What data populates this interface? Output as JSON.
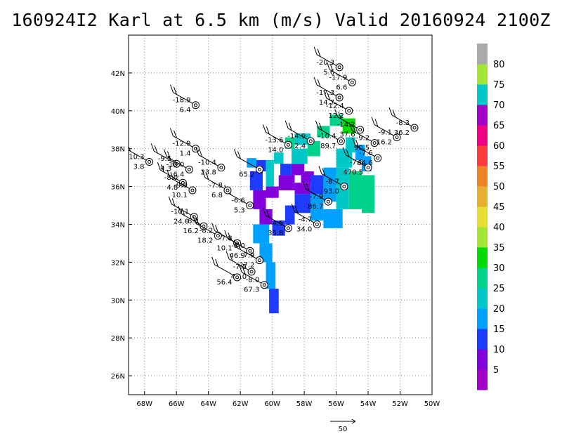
{
  "title": "160924I2 Karl at 6.5 km (m/s) Valid 20160924 2100Z",
  "chart_data": {
    "type": "heatmap",
    "title": "160924I2 Karl at 6.5 km (m/s) Valid 20160924 2100Z",
    "xlim": [
      -69,
      -50
    ],
    "ylim": [
      25,
      44
    ],
    "x_ticks": [
      {
        "value": -68,
        "label": "68W"
      },
      {
        "value": -66,
        "label": "66W"
      },
      {
        "value": -64,
        "label": "64W"
      },
      {
        "value": -62,
        "label": "62W"
      },
      {
        "value": -60,
        "label": "60W"
      },
      {
        "value": -58,
        "label": "58W"
      },
      {
        "value": -56,
        "label": "56W"
      },
      {
        "value": -54,
        "label": "54W"
      },
      {
        "value": -52,
        "label": "52W"
      },
      {
        "value": -50,
        "label": "50W"
      }
    ],
    "y_ticks": [
      {
        "value": 26,
        "label": "26N"
      },
      {
        "value": 28,
        "label": "28N"
      },
      {
        "value": 30,
        "label": "30N"
      },
      {
        "value": 32,
        "label": "32N"
      },
      {
        "value": 34,
        "label": "34N"
      },
      {
        "value": 36,
        "label": "36N"
      },
      {
        "value": 38,
        "label": "38N"
      },
      {
        "value": 40,
        "label": "40N"
      },
      {
        "value": 42,
        "label": "42N"
      }
    ],
    "grid": true,
    "colorbar": {
      "labels": [
        "5",
        "10",
        "15",
        "20",
        "25",
        "30",
        "35",
        "40",
        "45",
        "50",
        "55",
        "60",
        "65",
        "70",
        "75",
        "80"
      ],
      "colors": [
        "#a000c8",
        "#8200dc",
        "#1e3cff",
        "#00a0ff",
        "#00c8c8",
        "#00d28c",
        "#00dc00",
        "#a0e632",
        "#e6dc32",
        "#e6af2d",
        "#f08228",
        "#fa3c3c",
        "#f00082",
        "#a000c8",
        "#00c8c8",
        "#a0e632",
        "#aaaaaa"
      ]
    },
    "wind_field": [
      {
        "x0": -61.6,
        "x1": -61.0,
        "y0": 37.0,
        "y1": 37.5,
        "speed": 17
      },
      {
        "x0": -61.0,
        "x1": -60.4,
        "y0": 36.8,
        "y1": 37.4,
        "speed": 12
      },
      {
        "x0": -60.4,
        "x1": -59.9,
        "y0": 36.0,
        "y1": 37.4,
        "speed": 22
      },
      {
        "x0": -59.9,
        "x1": -59.3,
        "y0": 37.2,
        "y1": 37.8,
        "speed": 24
      },
      {
        "x0": -59.5,
        "x1": -58.8,
        "y0": 36.6,
        "y1": 37.2,
        "speed": 10
      },
      {
        "x0": -58.8,
        "x1": -58.0,
        "y0": 36.6,
        "y1": 37.2,
        "speed": 6
      },
      {
        "x0": -58.2,
        "x1": -57.4,
        "y0": 36.2,
        "y1": 36.8,
        "speed": 8
      },
      {
        "x0": -58.8,
        "x1": -57.8,
        "y0": 37.2,
        "y1": 38.0,
        "speed": 22
      },
      {
        "x0": -57.8,
        "x1": -57.0,
        "y0": 37.6,
        "y1": 38.4,
        "speed": 25
      },
      {
        "x0": -56.0,
        "x1": -55.0,
        "y0": 37.0,
        "y1": 38.0,
        "speed": 20
      },
      {
        "x0": -55.6,
        "x1": -54.8,
        "y0": 38.8,
        "y1": 39.6,
        "speed": 31
      },
      {
        "x0": -56.4,
        "x1": -55.6,
        "y0": 39.2,
        "y1": 39.8,
        "speed": 28
      },
      {
        "x0": -57.2,
        "x1": -56.4,
        "y0": 38.6,
        "y1": 39.2,
        "speed": 25
      },
      {
        "x0": -58.6,
        "x1": -57.6,
        "y0": 38.2,
        "y1": 38.8,
        "speed": 24
      },
      {
        "x0": -59.2,
        "x1": -58.6,
        "y0": 38.0,
        "y1": 38.6,
        "speed": 27
      },
      {
        "x0": -55.4,
        "x1": -54.8,
        "y0": 37.8,
        "y1": 38.6,
        "speed": 21
      },
      {
        "x0": -54.8,
        "x1": -54.2,
        "y0": 37.4,
        "y1": 38.2,
        "speed": 19
      },
      {
        "x0": -54.4,
        "x1": -53.8,
        "y0": 36.8,
        "y1": 37.6,
        "speed": 17
      },
      {
        "x0": -61.4,
        "x1": -60.6,
        "y0": 35.8,
        "y1": 36.8,
        "speed": 10
      },
      {
        "x0": -61.2,
        "x1": -60.4,
        "y0": 34.8,
        "y1": 35.8,
        "speed": 8
      },
      {
        "x0": -60.4,
        "x1": -59.6,
        "y0": 35.4,
        "y1": 36.0,
        "speed": 6
      },
      {
        "x0": -59.6,
        "x1": -58.6,
        "y0": 35.8,
        "y1": 36.6,
        "speed": 7
      },
      {
        "x0": -58.6,
        "x1": -57.6,
        "y0": 35.6,
        "y1": 36.2,
        "speed": 9
      },
      {
        "x0": -57.6,
        "x1": -56.8,
        "y0": 35.6,
        "y1": 36.6,
        "speed": 14
      },
      {
        "x0": -56.8,
        "x1": -56.0,
        "y0": 35.2,
        "y1": 36.2,
        "speed": 18
      },
      {
        "x0": -56.0,
        "x1": -55.2,
        "y0": 34.8,
        "y1": 35.8,
        "speed": 21
      },
      {
        "x0": -55.2,
        "x1": -54.4,
        "y0": 34.8,
        "y1": 36.8,
        "speed": 27
      },
      {
        "x0": -54.4,
        "x1": -53.6,
        "y0": 34.6,
        "y1": 36.6,
        "speed": 29
      },
      {
        "x0": -56.8,
        "x1": -56.0,
        "y0": 36.2,
        "y1": 37.0,
        "speed": 19
      },
      {
        "x0": -56.0,
        "x1": -55.2,
        "y0": 35.8,
        "y1": 37.0,
        "speed": 22
      },
      {
        "x0": -58.6,
        "x1": -57.6,
        "y0": 34.6,
        "y1": 35.6,
        "speed": 12
      },
      {
        "x0": -57.6,
        "x1": -56.8,
        "y0": 34.2,
        "y1": 35.6,
        "speed": 16
      },
      {
        "x0": -56.8,
        "x1": -55.6,
        "y0": 33.8,
        "y1": 34.8,
        "speed": 19
      },
      {
        "x0": -59.2,
        "x1": -58.6,
        "y0": 34.0,
        "y1": 35.0,
        "speed": 14
      },
      {
        "x0": -60.8,
        "x1": -60.0,
        "y0": 34.0,
        "y1": 34.8,
        "speed": 9
      },
      {
        "x0": -60.0,
        "x1": -59.2,
        "y0": 33.4,
        "y1": 34.2,
        "speed": 11
      },
      {
        "x0": -61.2,
        "x1": -60.2,
        "y0": 33.0,
        "y1": 34.0,
        "speed": 15
      },
      {
        "x0": -60.8,
        "x1": -60.0,
        "y0": 32.0,
        "y1": 33.0,
        "speed": 18
      },
      {
        "x0": -60.4,
        "x1": -59.8,
        "y0": 30.6,
        "y1": 32.0,
        "speed": 17
      },
      {
        "x0": -60.2,
        "x1": -59.6,
        "y0": 29.3,
        "y1": 30.6,
        "speed": 11
      }
    ],
    "observations": [
      {
        "x": -55.8,
        "y": 42.3,
        "u": "-20.3",
        "v": "5.6"
      },
      {
        "x": -55.0,
        "y": 41.5,
        "u": "-17.9",
        "v": "6.6"
      },
      {
        "x": -55.8,
        "y": 40.7,
        "u": "-17.3",
        "v": "14.7"
      },
      {
        "x": -55.2,
        "y": 40.0,
        "u": "-12.4",
        "v": "12.2"
      },
      {
        "x": -54.5,
        "y": 39.0,
        "u": "-14.2",
        "v": "37.6"
      },
      {
        "x": -53.6,
        "y": 38.3,
        "u": "-9.2",
        "v": "90.5"
      },
      {
        "x": -52.2,
        "y": 38.6,
        "u": "-9.1",
        "v": "16.2"
      },
      {
        "x": -51.1,
        "y": 39.1,
        "u": "-8.3",
        "v": "36.2"
      },
      {
        "x": -53.4,
        "y": 37.5,
        "u": "-7.6",
        "v": "64.6"
      },
      {
        "x": -54.0,
        "y": 37.0,
        "u": "-7.5",
        "v": "470.5"
      },
      {
        "x": -55.7,
        "y": 38.4,
        "u": "-10.4",
        "v": "89.7"
      },
      {
        "x": -57.6,
        "y": 38.4,
        "u": "-14.9",
        "v": "2.4"
      },
      {
        "x": -59.0,
        "y": 38.2,
        "u": "-13.6",
        "v": "14.0"
      },
      {
        "x": -55.5,
        "y": 36.0,
        "u": "-8.7",
        "v": "93.0"
      },
      {
        "x": -56.5,
        "y": 35.2,
        "u": "-7.9",
        "v": "86.7"
      },
      {
        "x": -57.2,
        "y": 34.0,
        "u": "-4.7",
        "v": "34.0"
      },
      {
        "x": -59.0,
        "y": 33.8,
        "u": "-4.5",
        "v": "35.8"
      },
      {
        "x": -60.8,
        "y": 36.9,
        "u": "",
        "v": "65.2"
      },
      {
        "x": -61.4,
        "y": 35.0,
        "u": "-6.6",
        "v": "5.3"
      },
      {
        "x": -62.8,
        "y": 35.8,
        "u": "-7.8",
        "v": "6.8"
      },
      {
        "x": -64.8,
        "y": 38.0,
        "u": "-12.9",
        "v": "1.4"
      },
      {
        "x": -63.2,
        "y": 37.0,
        "u": "-10.4",
        "v": "23.8"
      },
      {
        "x": -65.6,
        "y": 36.2,
        "u": "-8.0",
        "v": "4.8"
      },
      {
        "x": -65.0,
        "y": 35.8,
        "u": "-9.9",
        "v": "10.1"
      },
      {
        "x": -67.7,
        "y": 37.3,
        "u": "10.3",
        "v": "3.8"
      },
      {
        "x": -66.0,
        "y": 37.2,
        "u": "-9.5",
        "v": "4.3"
      },
      {
        "x": -65.2,
        "y": 36.9,
        "u": "-10.0",
        "v": "6.4"
      },
      {
        "x": -64.8,
        "y": 40.3,
        "u": "-18.9",
        "v": "6.4"
      },
      {
        "x": -64.9,
        "y": 34.4,
        "u": "-10.1",
        "v": "24.0"
      },
      {
        "x": -64.3,
        "y": 33.9,
        "u": "-6.3",
        "v": "16.2"
      },
      {
        "x": -63.4,
        "y": 33.4,
        "u": "-8.2",
        "v": "18.2"
      },
      {
        "x": -62.2,
        "y": 33.0,
        "u": "-7.8",
        "v": "10.1"
      },
      {
        "x": -61.4,
        "y": 32.6,
        "u": "-8.0",
        "v": "46.9"
      },
      {
        "x": -60.8,
        "y": 32.1,
        "u": "-7.9",
        "v": "27.2"
      },
      {
        "x": -61.3,
        "y": 31.5,
        "u": "-7.5",
        "v": "40.0"
      },
      {
        "x": -62.2,
        "y": 31.2,
        "u": "",
        "v": "56.4"
      },
      {
        "x": -60.5,
        "y": 30.8,
        "u": "-8.0",
        "v": "67.3"
      }
    ],
    "vector_legend": {
      "label": "50"
    }
  }
}
